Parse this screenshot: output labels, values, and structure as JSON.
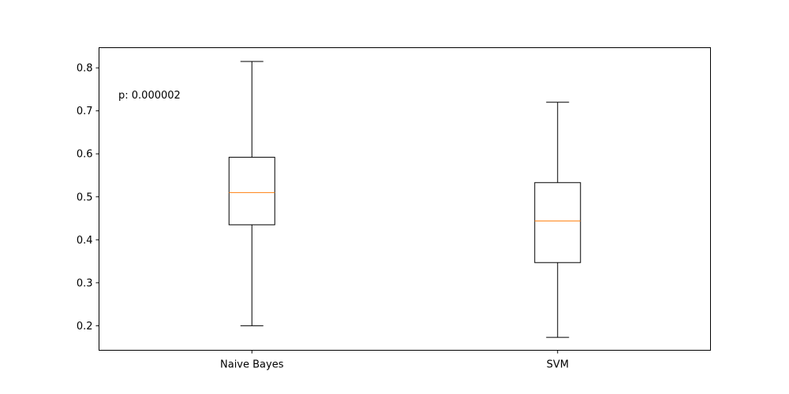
{
  "chart_data": {
    "type": "boxplot",
    "categories": [
      "Naive Bayes",
      "SVM"
    ],
    "boxes": [
      {
        "label": "Naive Bayes",
        "whisker_low": 0.2,
        "q1": 0.435,
        "median": 0.51,
        "q3": 0.592,
        "whisker_high": 0.815
      },
      {
        "label": "SVM",
        "whisker_low": 0.173,
        "q1": 0.347,
        "median": 0.444,
        "q3": 0.533,
        "whisker_high": 0.72
      }
    ],
    "ylim": [
      0.143,
      0.847
    ],
    "yticks": [
      0.2,
      0.3,
      0.4,
      0.5,
      0.6,
      0.7,
      0.8
    ],
    "ytick_labels": [
      "0.2",
      "0.3",
      "0.4",
      "0.5",
      "0.6",
      "0.7",
      "0.8"
    ],
    "annotation": "p: 0.000002",
    "title": "",
    "xlabel": "",
    "ylabel": "",
    "grid": false,
    "colors": {
      "box": "#000000",
      "median": "#ff7f0e",
      "background": "#ffffff"
    }
  }
}
